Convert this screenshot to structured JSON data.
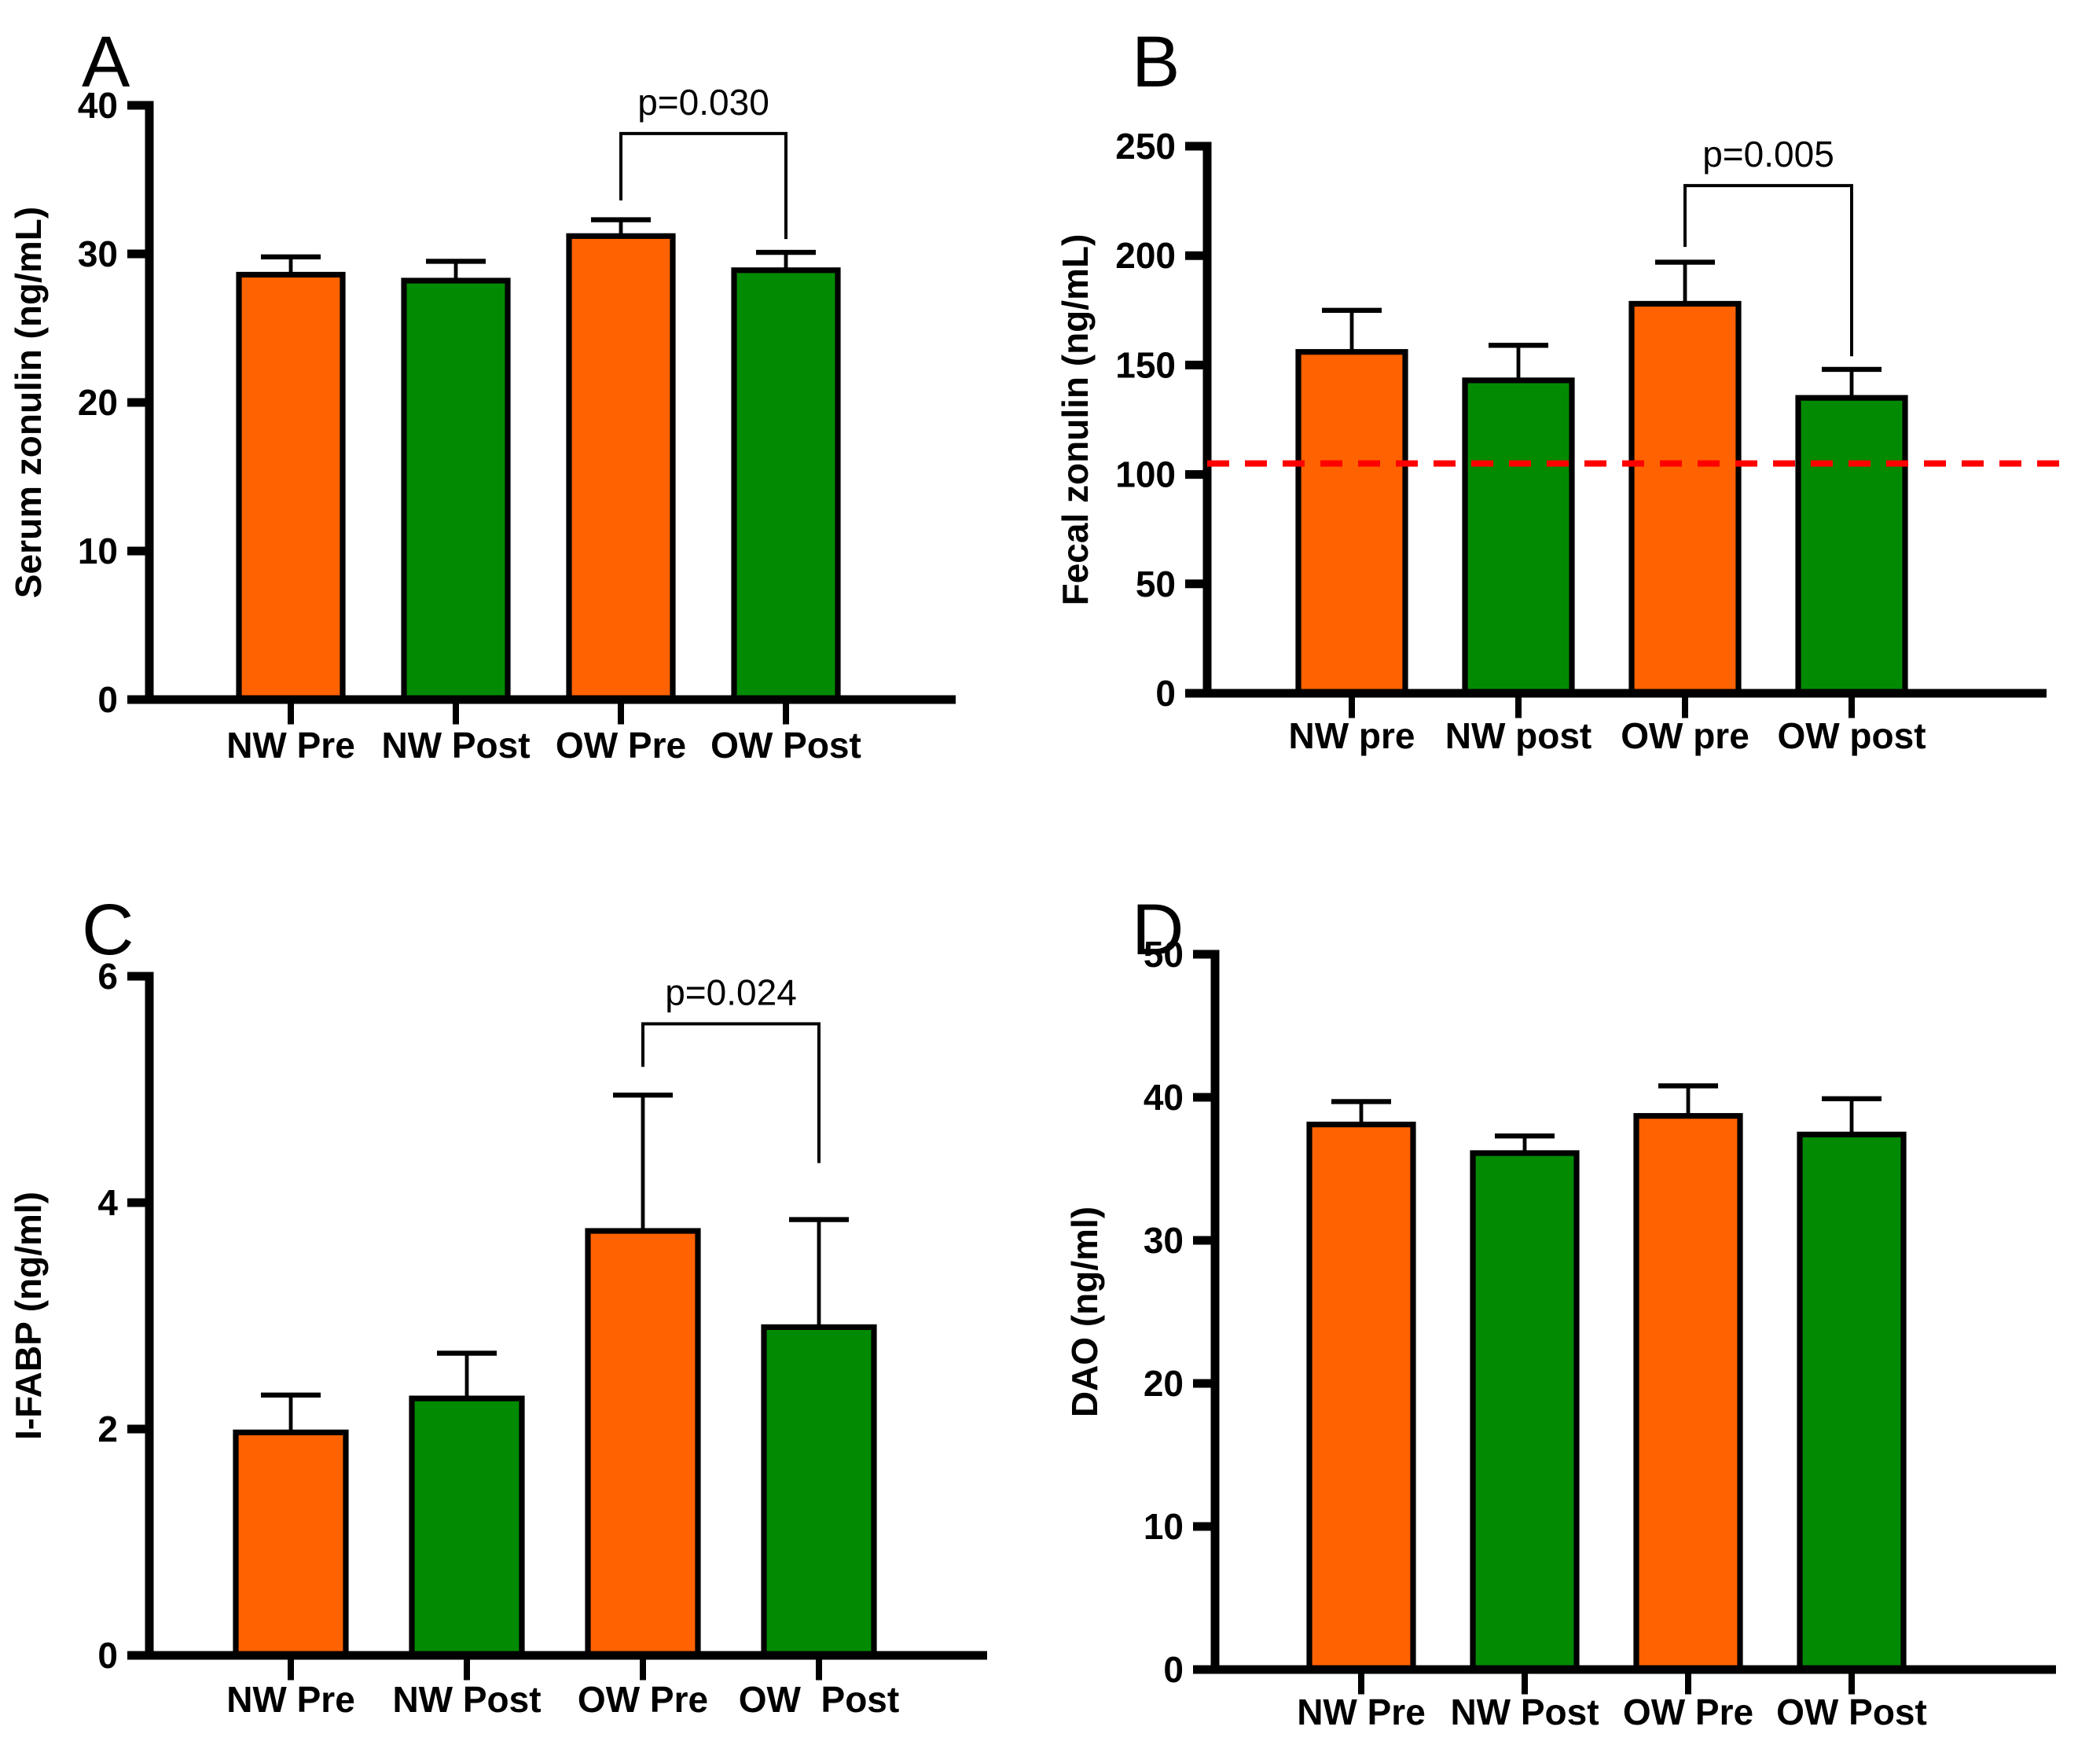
{
  "figure_background": "#ffffff",
  "colors": {
    "bar_orange": "#FF6200",
    "bar_green": "#038A03",
    "bar_border": "#000000",
    "axis": "#000000",
    "reference_red": "#FF0000"
  },
  "chart_data": [
    {
      "type": "bar",
      "panel_letter": "A",
      "title": "",
      "xlabel": "",
      "ylabel": "Serum zonulin (ng/mL)",
      "categories": [
        "NW Pre",
        "NW Post",
        "OW Pre",
        "OW Post"
      ],
      "values": [
        28.6,
        28.2,
        31.2,
        28.9
      ],
      "errors_up": [
        1.2,
        1.3,
        1.1,
        1.2
      ],
      "bar_colors": [
        "#FF6200",
        "#038A03",
        "#FF6200",
        "#038A03"
      ],
      "yticks": [
        0,
        10,
        20,
        30,
        40
      ],
      "ylim": [
        0,
        40
      ],
      "grid": "off",
      "legend": "none",
      "significance": {
        "label": "p=0.030",
        "from": 2,
        "to": 3,
        "bracket_y": 38.1,
        "left_leg_to": 33.6,
        "right_leg_to": 31.0
      }
    },
    {
      "type": "bar",
      "panel_letter": "B",
      "title": "",
      "xlabel": "",
      "ylabel": "Fecal zonulin (ng/mL)",
      "categories": [
        "NW pre",
        "NW post",
        "OW pre",
        "OW post"
      ],
      "values": [
        156,
        143,
        178,
        135
      ],
      "errors_up": [
        19,
        16,
        19,
        13
      ],
      "bar_colors": [
        "#FF6200",
        "#038A03",
        "#FF6200",
        "#038A03"
      ],
      "yticks": [
        0,
        50,
        100,
        150,
        200,
        250
      ],
      "ylim": [
        0,
        250
      ],
      "grid": "off",
      "legend": "none",
      "reference_line": {
        "y": 105,
        "color": "#FF0000",
        "style": "dashed"
      },
      "significance": {
        "label": "p=0.005",
        "from": 2,
        "to": 3,
        "bracket_y": 232,
        "left_leg_to": 204,
        "right_leg_to": 154
      }
    },
    {
      "type": "bar",
      "panel_letter": "C",
      "title": "",
      "xlabel": "",
      "ylabel": "I-FABP (ng/ml)",
      "categories": [
        "NW Pre",
        "NW Post",
        "OW Pre",
        "OW  Post"
      ],
      "values": [
        1.97,
        2.27,
        3.75,
        2.9
      ],
      "errors_up": [
        0.33,
        0.4,
        1.2,
        0.95
      ],
      "bar_colors": [
        "#FF6200",
        "#038A03",
        "#FF6200",
        "#038A03"
      ],
      "yticks": [
        0,
        2,
        4,
        6
      ],
      "ylim": [
        0,
        6
      ],
      "grid": "off",
      "legend": "none",
      "significance": {
        "label": "p=0.024",
        "from": 2,
        "to": 3,
        "bracket_y": 5.58,
        "left_leg_to": 5.2,
        "right_leg_to": 4.35
      }
    },
    {
      "type": "bar",
      "panel_letter": "D",
      "title": "",
      "xlabel": "",
      "ylabel": "DAO (ng/ml)",
      "categories": [
        "NW Pre",
        "NW Post",
        "OW Pre",
        "OW Post"
      ],
      "values": [
        38.1,
        36.1,
        38.7,
        37.4
      ],
      "errors_up": [
        1.6,
        1.2,
        2.1,
        2.5
      ],
      "bar_colors": [
        "#FF6200",
        "#038A03",
        "#FF6200",
        "#038A03"
      ],
      "yticks": [
        0,
        10,
        20,
        30,
        40,
        50
      ],
      "ylim": [
        0,
        50
      ],
      "grid": "off",
      "legend": "none"
    }
  ]
}
